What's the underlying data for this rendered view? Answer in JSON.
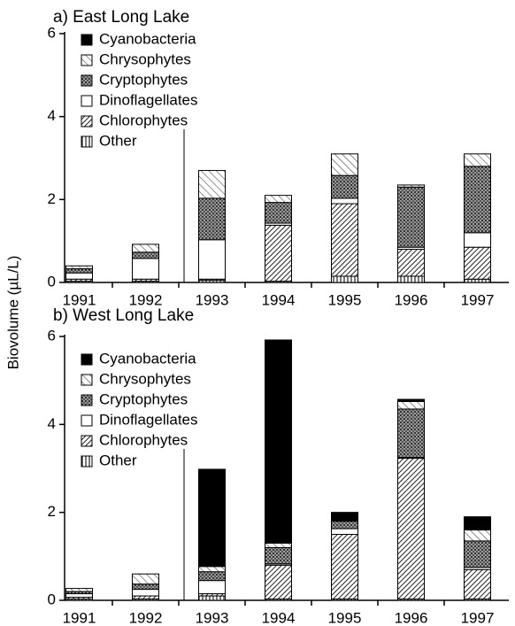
{
  "chart_data": [
    {
      "type": "bar",
      "stacked": true,
      "title": "a) East Long Lake",
      "ylabel": "Biovolume (µL/L)",
      "categories": [
        "1991",
        "1992",
        "1993",
        "1994",
        "1995",
        "1996",
        "1997"
      ],
      "ylim": [
        0,
        6
      ],
      "yticks": [
        0,
        2,
        4,
        6
      ],
      "series": [
        {
          "name": "Cyanobacteria",
          "color": "#000000",
          "pattern": "solid",
          "values": [
            0,
            0,
            0,
            0,
            0,
            0,
            0
          ]
        },
        {
          "name": "Chrysophytes",
          "color": "#bbbbbb",
          "pattern": "hatch-light",
          "values": [
            0.07,
            0.19,
            0.67,
            0.17,
            0.52,
            0.05,
            0.3
          ]
        },
        {
          "name": "Cryptophytes",
          "color": "#666666",
          "pattern": "stipple",
          "values": [
            0.1,
            0.15,
            1.0,
            0.5,
            0.55,
            1.45,
            1.6
          ]
        },
        {
          "name": "Dinoflagellates",
          "color": "#ffffff",
          "pattern": "open",
          "values": [
            0.15,
            0.5,
            0.95,
            0.05,
            0.13,
            0.05,
            0.35
          ]
        },
        {
          "name": "Chlorophytes",
          "color": "#444444",
          "pattern": "hatch-dense",
          "values": [
            0.05,
            0.05,
            0.03,
            1.35,
            1.75,
            0.65,
            0.77
          ]
        },
        {
          "name": "Other",
          "color": "#777777",
          "pattern": "vertical",
          "values": [
            0.03,
            0.03,
            0.05,
            0.03,
            0.15,
            0.15,
            0.08
          ]
        }
      ]
    },
    {
      "type": "bar",
      "stacked": true,
      "title": "b) West Long Lake",
      "categories": [
        "1991",
        "1992",
        "1993",
        "1994",
        "1995",
        "1996",
        "1997"
      ],
      "ylim": [
        0,
        6
      ],
      "yticks": [
        0,
        2,
        4,
        6
      ],
      "series": [
        {
          "name": "Cyanobacteria",
          "color": "#000000",
          "pattern": "solid",
          "values": [
            0,
            0,
            2.21,
            4.62,
            0.18,
            0.05,
            0.3
          ]
        },
        {
          "name": "Chrysophytes",
          "color": "#bbbbbb",
          "pattern": "hatch-light",
          "values": [
            0.07,
            0.23,
            0.12,
            0.1,
            0.02,
            0.17,
            0.25
          ]
        },
        {
          "name": "Cryptophytes",
          "color": "#666666",
          "pattern": "stipple",
          "values": [
            0.05,
            0.12,
            0.2,
            0.37,
            0.17,
            1.1,
            0.6
          ]
        },
        {
          "name": "Dinoflagellates",
          "color": "#ffffff",
          "pattern": "open",
          "values": [
            0.08,
            0.15,
            0.3,
            0.03,
            0.13,
            0.02,
            0.05
          ]
        },
        {
          "name": "Chlorophytes",
          "color": "#444444",
          "pattern": "hatch-dense",
          "values": [
            0.04,
            0.07,
            0.05,
            0.77,
            1.47,
            3.2,
            0.67
          ]
        },
        {
          "name": "Other",
          "color": "#777777",
          "pattern": "vertical",
          "values": [
            0.03,
            0.03,
            0.1,
            0.03,
            0.03,
            0.03,
            0.03
          ]
        }
      ]
    }
  ]
}
